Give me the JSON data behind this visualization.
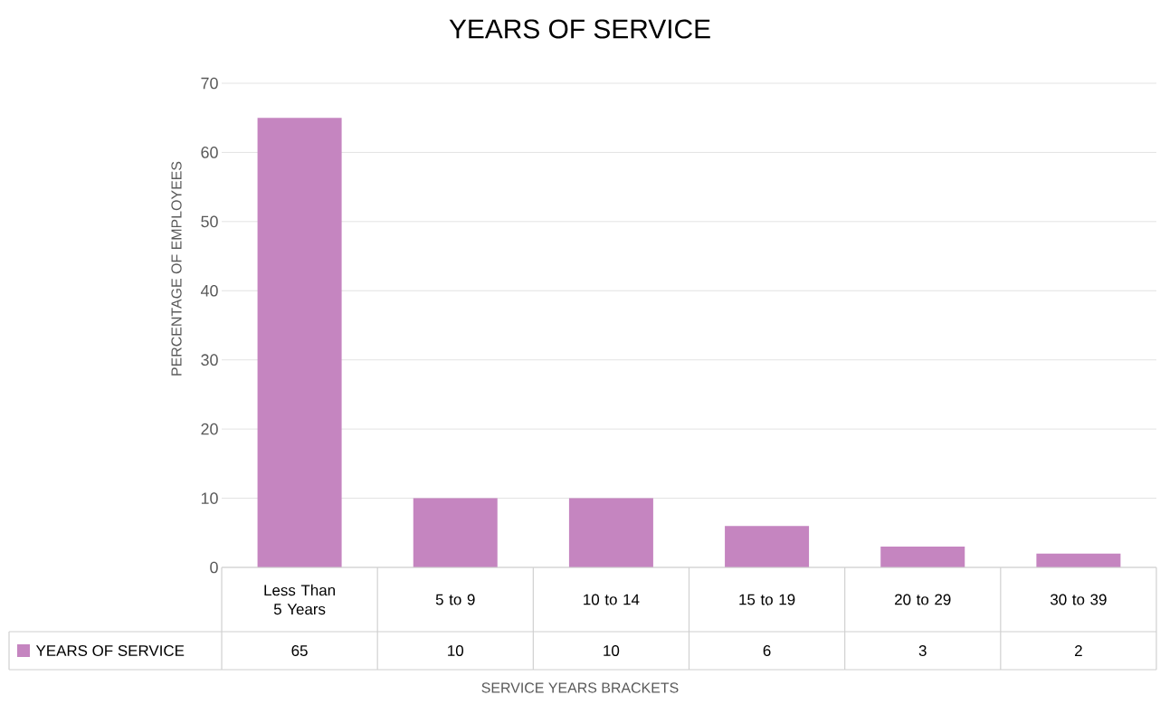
{
  "chart_data": {
    "type": "bar",
    "title": "YEARS OF SERVICE",
    "xlabel": "SERVICE YEARS BRACKETS",
    "ylabel": "PERCENTAGE OF EMPLOYEES",
    "categories": [
      "Less Than 5 Years",
      "5 to 9",
      "10 to 14",
      "15 to 19",
      "20 to 29",
      "30 to 39"
    ],
    "series": [
      {
        "name": "YEARS OF SERVICE",
        "color": "#c585c0",
        "values": [
          65,
          10,
          10,
          6,
          3,
          2
        ]
      }
    ],
    "ylim": [
      0,
      70
    ],
    "yticks": [
      0,
      10,
      20,
      30,
      40,
      50,
      60,
      70
    ],
    "grid": "y",
    "legend": "bottom",
    "data_labels": true
  }
}
